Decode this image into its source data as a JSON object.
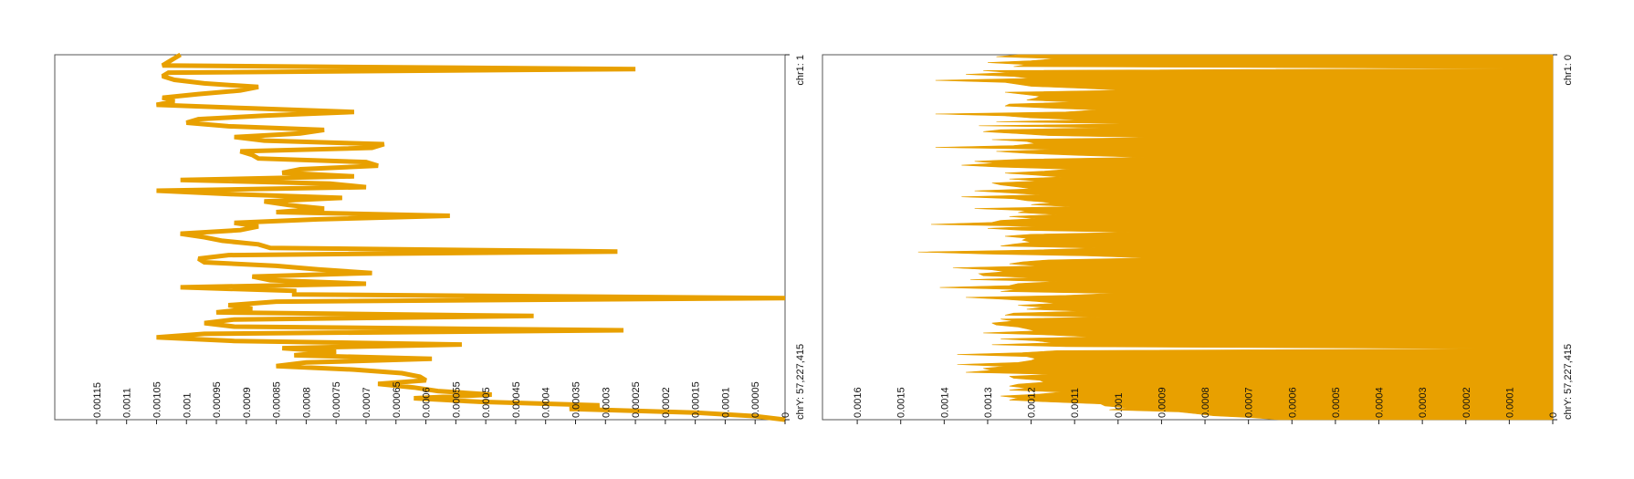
{
  "colors": {
    "series": "#e8a000",
    "frame": "#555555",
    "background": "#ffffff"
  },
  "chart_data": [
    {
      "type": "line",
      "orientation": "rotated-90",
      "title": "",
      "xlabel": "",
      "ylabel": "",
      "genome_range": {
        "start_label": "chr1: 1",
        "end_label": "chrY: 57,227,415"
      },
      "ylim": [
        0,
        0.00122
      ],
      "y_ticks": [
        0,
        5e-05,
        0.0001,
        0.00015,
        0.0002,
        0.00025,
        0.0003,
        0.00035,
        0.0004,
        0.00045,
        0.0005,
        0.00055,
        0.0006,
        0.00065,
        0.0007,
        0.00075,
        0.0008,
        0.00085,
        0.0009,
        0.00095,
        0.001,
        0.00105,
        0.0011,
        0.00115
      ],
      "y_tick_labels": [
        "0",
        "0.00005",
        "0.0001",
        "0.00015",
        "0.0002",
        "0.00025",
        "0.0003",
        "0.00035",
        "0.0004",
        "0.00045",
        "0.0005",
        "0.00055",
        "0.0006",
        "0.00065",
        "0.0007",
        "0.00075",
        "0.0008",
        "0.00085",
        "0.0009",
        "0.00095",
        "0.001",
        "0.00105",
        "0.0011",
        "0.00115"
      ],
      "grid": false,
      "legend": "none",
      "values": [
        0.00101,
        0.00102,
        0.00103,
        0.00104,
        0.00025,
        0.00103,
        0.00104,
        0.00102,
        0.00097,
        0.00088,
        0.00091,
        0.00098,
        0.00104,
        0.00102,
        0.00105,
        0.00089,
        0.00072,
        0.00087,
        0.00098,
        0.001,
        0.00093,
        0.00077,
        0.00081,
        0.00092,
        0.00087,
        0.00067,
        0.00069,
        0.00091,
        0.00089,
        0.00088,
        0.0007,
        0.00068,
        0.00081,
        0.00084,
        0.00072,
        0.00101,
        0.00076,
        0.0007,
        0.00105,
        0.00092,
        0.00074,
        0.00087,
        0.00083,
        0.00077,
        0.00085,
        0.00056,
        0.00078,
        0.00092,
        0.00088,
        0.00091,
        0.00101,
        0.00097,
        0.00094,
        0.00088,
        0.00086,
        0.00028,
        0.00093,
        0.00098,
        0.00097,
        0.00085,
        0.00078,
        0.00069,
        0.00089,
        0.00086,
        0.0007,
        0.00101,
        0.00082,
        0.00082,
        0.0,
        0.00085,
        0.00093,
        0.00089,
        0.00095,
        0.00042,
        0.00092,
        0.00097,
        0.00092,
        0.00027,
        0.00097,
        0.00105,
        0.00092,
        0.00054,
        0.00084,
        0.00075,
        0.00082,
        0.00059,
        0.0008,
        0.00085,
        0.00072,
        0.00064,
        0.00061,
        0.0006,
        0.00068,
        0.00062,
        0.00058,
        0.00049,
        0.00062,
        0.00051,
        0.00031,
        0.00036,
        0.00015,
        5e-05,
        0.0
      ]
    },
    {
      "type": "area",
      "orientation": "rotated-90",
      "title": "",
      "xlabel": "",
      "ylabel": "",
      "genome_range": {
        "start_label": "chr1: 0",
        "end_label": "chrY: 57,227,415"
      },
      "ylim": [
        0,
        0.00168
      ],
      "y_ticks": [
        0,
        0.0001,
        0.0002,
        0.0003,
        0.0004,
        0.0005,
        0.0006,
        0.0007,
        0.0008,
        0.0009,
        0.001,
        0.0011,
        0.0012,
        0.0013,
        0.0014,
        0.0015,
        0.0016
      ],
      "y_tick_labels": [
        "0",
        "0.0001",
        "0.0002",
        "0.0003",
        "0.0004",
        "0.0005",
        "0.0006",
        "0.0007",
        "0.0008",
        "0.0009",
        "0.001",
        "0.0011",
        "0.0012",
        "0.0013",
        "0.0014",
        "0.0015",
        "0.0016"
      ],
      "grid": false,
      "legend": "none",
      "values": [
        0.00123,
        0.00128,
        0.00114,
        0.0012,
        0.0013,
        0.00121,
        0.00124,
        8e-05,
        0.00131,
        0.00125,
        0.00135,
        0.00124,
        0.0012,
        0.00142,
        0.00126,
        0.00123,
        0.0012,
        0.00108,
        0.00099,
        0.00126,
        0.00122,
        0.00118,
        0.00119,
        0.00121,
        0.0011,
        0.00125,
        0.00126,
        0.00116,
        0.00105,
        0.00112,
        0.00142,
        0.00126,
        0.0012,
        0.00108,
        0.00128,
        0.00096,
        0.00132,
        0.00104,
        0.00127,
        0.00131,
        0.00123,
        0.00116,
        0.00091,
        0.00129,
        0.00121,
        0.00119,
        0.00124,
        0.00142,
        0.00114,
        0.00128,
        0.00121,
        0.00109,
        0.00094,
        0.00122,
        0.00133,
        0.00128,
        0.00136,
        0.00127,
        0.00111,
        0.00117,
        0.00126,
        0.00119,
        0.00113,
        0.00125,
        0.00118,
        0.00129,
        0.00127,
        0.00123,
        0.0012,
        0.00133,
        0.00125,
        0.00118,
        0.00136,
        0.00124,
        0.00121,
        0.00115,
        0.0012,
        0.00111,
        0.00133,
        0.00121,
        0.00123,
        0.00114,
        0.00125,
        0.00119,
        0.00127,
        0.00129,
        0.00143,
        0.00119,
        0.0013,
        0.00122,
        0.00097,
        0.0012,
        0.00126,
        0.00121,
        0.00122,
        0.0012,
        0.00124,
        0.00127,
        0.00105,
        0.0012,
        0.00146,
        0.0013,
        0.00107,
        0.00093,
        0.00116,
        0.00122,
        0.00125,
        0.00118,
        0.00138,
        0.00129,
        0.00126,
        0.00132,
        0.00131,
        0.0012,
        0.00134,
        0.00114,
        0.00123,
        0.00125,
        0.00141,
        0.00123,
        0.00127,
        0.00101,
        0.00112,
        0.00135,
        0.00126,
        0.00119,
        0.00114,
        0.00123,
        0.00117,
        0.00121,
        0.00108,
        0.00124,
        0.00126,
        0.00104,
        0.00127,
        0.00124,
        0.00129,
        0.00128,
        0.00123,
        0.00121,
        0.00119,
        0.00131,
        0.00117,
        0.00106,
        0.00127,
        0.00119,
        0.00115,
        0.00129,
        0.00112,
        8e-05,
        0.00114,
        0.00122,
        0.00137,
        0.00121,
        0.00119,
        0.0012,
        0.00123,
        0.00137,
        0.00126,
        0.00131,
        0.00129,
        0.00135,
        0.00115,
        0.00125,
        0.00124,
        0.00118,
        0.00117,
        0.00123,
        0.00125,
        0.00121,
        0.00125,
        0.00113,
        0.00118,
        0.00127,
        0.00123,
        0.00125,
        0.00116,
        0.00104,
        0.00103,
        0.00098,
        0.00102,
        0.00086,
        0.00082,
        0.00078,
        0.00069,
        0.00063
      ]
    }
  ]
}
